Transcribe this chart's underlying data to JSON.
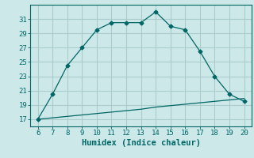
{
  "xlabel": "Humidex (Indice chaleur)",
  "bg_color": "#cce8e8",
  "grid_color": "#aacccc",
  "line_color": "#006666",
  "x_main": [
    6,
    7,
    8,
    9,
    10,
    11,
    12,
    13,
    14,
    15,
    16,
    17,
    18,
    19,
    20
  ],
  "y_main": [
    17,
    20.5,
    24.5,
    27,
    29.5,
    30.5,
    30.5,
    30.5,
    32,
    30,
    29.5,
    26.5,
    23,
    20.5,
    19.5
  ],
  "x_flat": [
    6,
    7,
    8,
    9,
    10,
    11,
    12,
    13,
    14,
    15,
    16,
    17,
    18,
    19,
    20
  ],
  "y_flat": [
    17,
    17.2,
    17.4,
    17.6,
    17.8,
    18.0,
    18.2,
    18.4,
    18.7,
    18.9,
    19.1,
    19.3,
    19.5,
    19.7,
    19.9
  ],
  "xlim": [
    5.5,
    20.5
  ],
  "ylim": [
    16,
    33
  ],
  "yticks": [
    17,
    19,
    21,
    23,
    25,
    27,
    29,
    31
  ],
  "xticks": [
    6,
    7,
    8,
    9,
    10,
    11,
    12,
    13,
    14,
    15,
    16,
    17,
    18,
    19,
    20
  ],
  "tick_fontsize": 6.5,
  "xlabel_fontsize": 7.5
}
